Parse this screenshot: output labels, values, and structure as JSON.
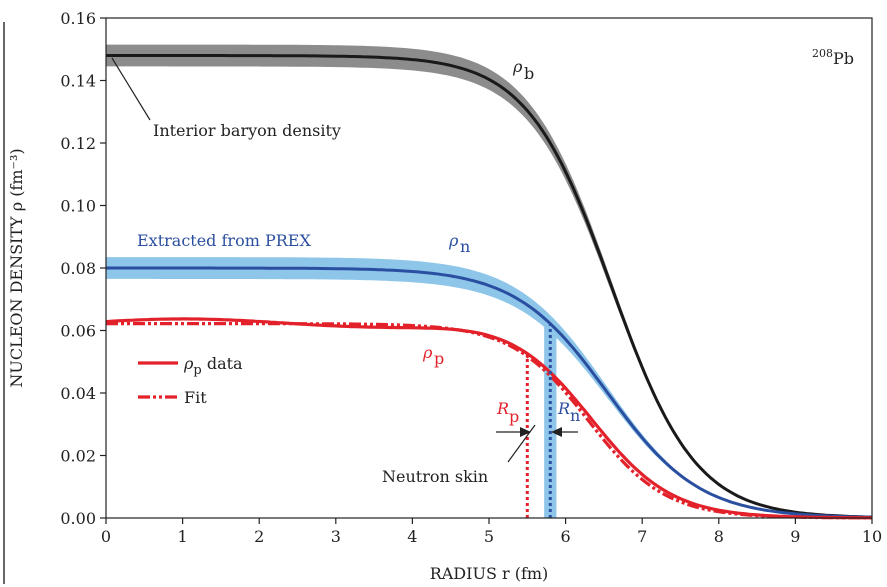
{
  "chart_data": {
    "type": "line",
    "xlabel": "RADIUS r (fm)",
    "ylabel": "NUCLEON DENSITY ρ (fm⁻³)",
    "xlim": [
      0,
      10
    ],
    "ylim": [
      0.0,
      0.16
    ],
    "xticks": [
      "0",
      "1",
      "2",
      "3",
      "4",
      "5",
      "6",
      "7",
      "8",
      "9",
      "10"
    ],
    "yticks": [
      "0.00",
      "0.02",
      "0.04",
      "0.06",
      "0.08",
      "0.10",
      "0.12",
      "0.14",
      "0.16"
    ],
    "grid": false,
    "legend_position": "left",
    "series": [
      {
        "name": "ρb",
        "kind": "fermi",
        "rho0": 0.148,
        "R": 6.6,
        "a": 0.55,
        "band": 0.0035,
        "color": "#1a1a1a",
        "band_color": "#8c8c8c"
      },
      {
        "name": "ρn",
        "kind": "fermi",
        "rho0": 0.08,
        "R": 6.55,
        "a": 0.6,
        "band": 0.0035,
        "color": "#2b4fa0",
        "band_color": "#8ec6ea"
      },
      {
        "name": "ρp data",
        "kind": "fermi_wavy",
        "rho0": 0.0625,
        "R": 6.35,
        "a": 0.52,
        "color": "#e3212b"
      },
      {
        "name": "Fit",
        "kind": "fermi_dashdot",
        "rho0": 0.0622,
        "R": 6.3,
        "a": 0.5,
        "color": "#e3212b"
      }
    ],
    "markers": [
      {
        "label_main": "R",
        "label_sub": "p",
        "x": 5.5,
        "color": "#e3212b"
      },
      {
        "label_main": "R",
        "label_sub": "n",
        "x": 5.8,
        "color": "#2b4fa0"
      }
    ],
    "neutron_skin_band": {
      "x0": 5.72,
      "x1": 5.88,
      "color": "#8ec6ea"
    },
    "annotations": {
      "isotope_sup": "208",
      "isotope": "Pb",
      "rho_b_main": "ρ",
      "rho_b_sub": "b",
      "rho_n_main": "ρ",
      "rho_n_sub": "n",
      "rho_p_main": "ρ",
      "rho_p_sub": "p",
      "interior": "Interior baryon density",
      "prex": "Extracted from PREX",
      "neutron_skin": "Neutron skin",
      "legend_data_main": "ρ",
      "legend_data_sub": "p",
      "legend_data_suffix": " data",
      "legend_fit": "Fit"
    },
    "colors": {
      "red": "#e3212b",
      "blue": "#2b4fa0",
      "black": "#1a1a1a",
      "light_blue": "#8ec6ea",
      "gray": "#8c8c8c"
    }
  }
}
